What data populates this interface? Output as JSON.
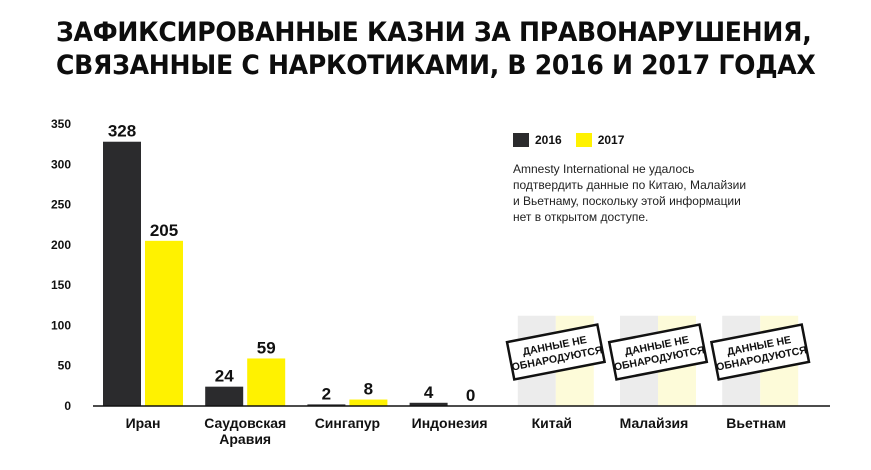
{
  "title": {
    "line1": "ЗАФИКСИРОВАННЫЕ КАЗНИ ЗА ПРАВОНАРУШЕНИЯ,",
    "line2": "СВЯЗАННЫЕ С НАРКОТИКАМИ, В 2016 И 2017 ГОДАХ"
  },
  "note": "Amnesty International не удалось подтвердить данные по Китаю, Малайзии и Вьетнаму, поскольку этой информации нет в открытом доступе.",
  "colors": {
    "s2016": "#2b2b2d",
    "s2017": "#fff200",
    "ghost2016": "#ececec",
    "ghost2017": "#fdfbd9"
  },
  "chart_data": {
    "type": "bar",
    "categories": [
      "Иран",
      "Саудовская Аравия",
      "Сингапур",
      "Индонезия",
      "Китай",
      "Малайзия",
      "Вьетнам"
    ],
    "category_lines": [
      [
        "Иран"
      ],
      [
        "Саудовская",
        "Аравия"
      ],
      [
        "Сингапур"
      ],
      [
        "Индонезия"
      ],
      [
        "Китай"
      ],
      [
        "Малайзия"
      ],
      [
        "Вьетнам"
      ]
    ],
    "series": [
      {
        "name": "2016",
        "values": [
          328,
          24,
          2,
          4,
          null,
          null,
          null
        ]
      },
      {
        "name": "2017",
        "values": [
          205,
          59,
          8,
          0,
          null,
          null,
          null
        ]
      }
    ],
    "ylim": [
      0,
      350
    ],
    "yticks": [
      0,
      50,
      100,
      150,
      200,
      250,
      300,
      350
    ],
    "not_disclosed_label": [
      "ДАННЫЕ НЕ",
      "ОБНАРОДУЮТСЯ"
    ],
    "xlabel": "",
    "ylabel": "",
    "grid": false,
    "legend_position": "top-right"
  }
}
